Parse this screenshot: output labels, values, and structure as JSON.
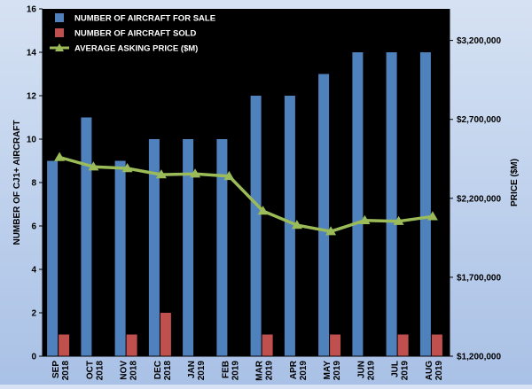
{
  "chart_data": {
    "type": "bar",
    "categories": [
      [
        "SEP",
        "2018"
      ],
      [
        "OCT",
        "2018"
      ],
      [
        "NOV",
        "2018"
      ],
      [
        "DEC",
        "2018"
      ],
      [
        "JAN",
        "2019"
      ],
      [
        "FEB",
        "2019"
      ],
      [
        "MAR",
        "2019"
      ],
      [
        "APR",
        "2019"
      ],
      [
        "MAY",
        "2019"
      ],
      [
        "JUN",
        "2019"
      ],
      [
        "JUL",
        "2019"
      ],
      [
        "AUG",
        "2019"
      ]
    ],
    "series": [
      {
        "name": "NUMBER OF AIRCRAFT FOR SALE",
        "type": "bar",
        "axis": "left",
        "color": "#4f81bd",
        "values": [
          9,
          11,
          9,
          10,
          10,
          10,
          12,
          12,
          13,
          14,
          14,
          14
        ]
      },
      {
        "name": "NUMBER OF AIRCRAFT SOLD",
        "type": "bar",
        "axis": "left",
        "color": "#c0504d",
        "values": [
          1,
          0,
          1,
          2,
          0,
          0,
          1,
          0,
          1,
          0,
          1,
          1
        ]
      },
      {
        "name": "AVERAGE ASKING PRICE ($M)",
        "type": "line",
        "axis": "right",
        "color": "#9bbb59",
        "values": [
          2460000,
          2400000,
          2390000,
          2350000,
          2355000,
          2340000,
          2120000,
          2030000,
          1990000,
          2060000,
          2055000,
          2085000
        ]
      }
    ],
    "ylabel": "NUMBER OF CJ1+ AIRCRAFT",
    "ylim": [
      0,
      16
    ],
    "yticks": [
      "0",
      "2",
      "4",
      "6",
      "8",
      "10",
      "12",
      "14",
      "16"
    ],
    "y2label": "PRICE ($M)",
    "y2lim": [
      1200000,
      3400000
    ],
    "y2ticks": [
      {
        "value": 1200000,
        "label": "$1,200,000"
      },
      {
        "value": 1700000,
        "label": "$1,700,000"
      },
      {
        "value": 2200000,
        "label": "$2,200,000"
      },
      {
        "value": 2700000,
        "label": "$2,700,000"
      },
      {
        "value": 3200000,
        "label": "$3,200,000"
      }
    ],
    "legend_position": "top-left",
    "plot_background": "#000000",
    "grid": false
  }
}
